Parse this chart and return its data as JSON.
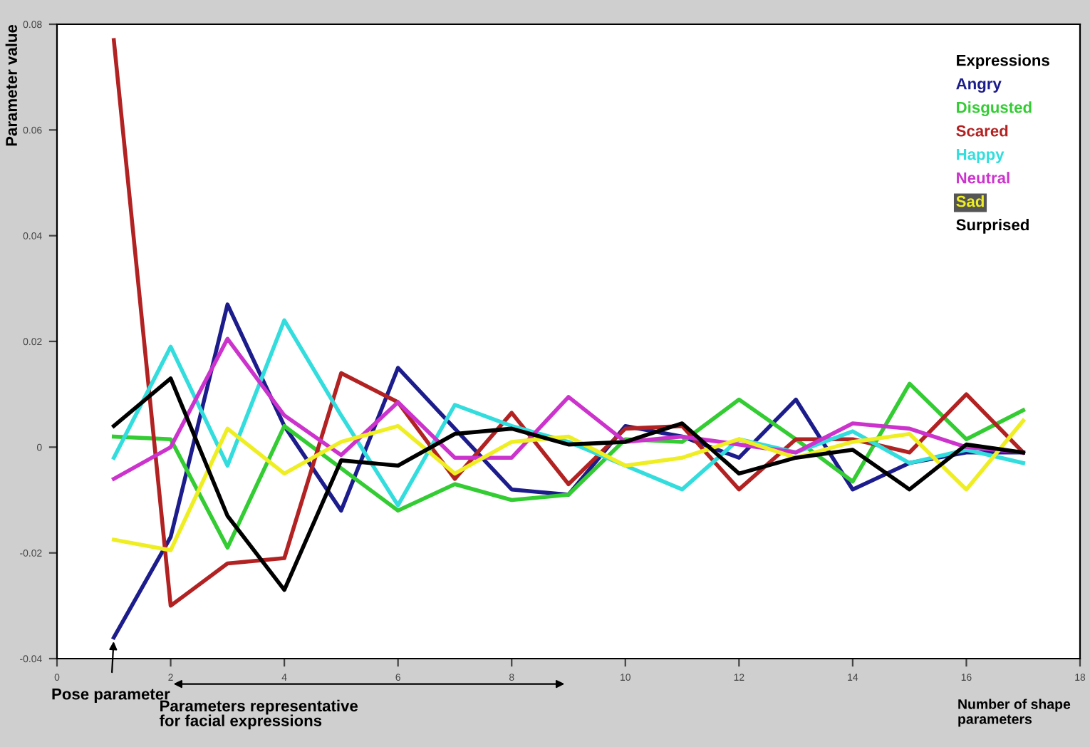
{
  "chart_data": {
    "type": "line",
    "xlabel": "Number of shape parameters",
    "ylabel": "Parameter value",
    "legend_title": "Expressions",
    "legend": "top right",
    "grid": false,
    "x": [
      1,
      2,
      3,
      4,
      5,
      6,
      7,
      8,
      9,
      10,
      11,
      12,
      13,
      14,
      15,
      16,
      17
    ],
    "xlim": [
      0,
      18
    ],
    "xticks": [
      0,
      2,
      4,
      6,
      8,
      10,
      12,
      14,
      16,
      18
    ],
    "ylim": [
      -0.04,
      0.08
    ],
    "yticks": [
      -0.04,
      -0.02,
      0,
      0.02,
      0.04,
      0.06,
      0.08
    ],
    "series": [
      {
        "name": "Angry",
        "color": "#1c1c8c",
        "values": [
          -0.036,
          -0.017,
          0.027,
          0.004,
          -0.012,
          0.015,
          0.0035,
          -0.008,
          -0.009,
          0.004,
          0.002,
          -0.002,
          0.009,
          -0.008,
          -0.003,
          -0.001,
          -0.001
        ]
      },
      {
        "name": "Disgusted",
        "color": "#33cc33",
        "values": [
          0.002,
          0.0015,
          -0.019,
          0.004,
          -0.004,
          -0.012,
          -0.007,
          -0.01,
          -0.009,
          0.0015,
          0.001,
          0.009,
          0.0015,
          -0.0065,
          0.012,
          0.0015,
          0.007
        ]
      },
      {
        "name": "Scared",
        "color": "#b22222",
        "values": [
          0.077,
          -0.03,
          -0.022,
          -0.021,
          0.014,
          0.0085,
          -0.006,
          0.0065,
          -0.007,
          0.0035,
          0.004,
          -0.008,
          0.0015,
          0.0015,
          -0.001,
          0.01,
          -0.001
        ]
      },
      {
        "name": "Happy",
        "color": "#33dddd",
        "values": [
          -0.002,
          0.019,
          -0.0035,
          0.024,
          0.006,
          -0.011,
          0.008,
          0.004,
          0.001,
          -0.0035,
          -0.008,
          0.0015,
          -0.001,
          0.003,
          -0.003,
          -0.0005,
          -0.003
        ]
      },
      {
        "name": "Neutral",
        "color": "#cc33cc",
        "values": [
          -0.006,
          0.0,
          0.0205,
          0.006,
          -0.0015,
          0.0085,
          -0.002,
          -0.002,
          0.0095,
          0.001,
          0.002,
          0.0005,
          -0.001,
          0.0045,
          0.0035,
          0.0,
          -0.001
        ]
      },
      {
        "name": "Sad",
        "color": "#eeee22",
        "values": [
          -0.0175,
          -0.0195,
          0.0035,
          -0.005,
          0.001,
          0.004,
          -0.005,
          0.001,
          0.002,
          -0.0035,
          -0.002,
          0.0015,
          -0.002,
          0.001,
          0.0025,
          -0.008,
          0.005
        ]
      },
      {
        "name": "Surprised",
        "color": "#000000",
        "values": [
          0.004,
          0.013,
          -0.013,
          -0.027,
          -0.0025,
          -0.0035,
          0.0025,
          0.0035,
          0.0005,
          0.001,
          0.0045,
          -0.005,
          -0.002,
          -0.0005,
          -0.008,
          0.0005,
          -0.001
        ]
      }
    ],
    "annotations": [
      {
        "text": "Pose parameter",
        "x": 1,
        "y": -0.036
      },
      "Parameters representative\nfor facial expressions"
    ]
  }
}
